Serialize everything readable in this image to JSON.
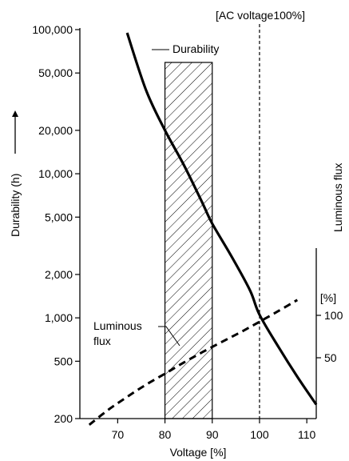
{
  "chart_data": {
    "type": "line",
    "title": "",
    "xlabel": "Voltage [%]",
    "ylabel": "Durability (h)",
    "y2label": "Luminous flux",
    "y2unit": "[%]",
    "x_ticks": [
      "70",
      "80",
      "90",
      "100",
      "110"
    ],
    "y_ticks": [
      "100,000",
      "50,000",
      "20,000",
      "10,000",
      "5,000",
      "2,000",
      "1,000",
      "500",
      "200"
    ],
    "y2_ticks": [
      "100",
      "50"
    ],
    "y_scale": "log",
    "xlim": [
      62,
      112
    ],
    "ylim": [
      200,
      120000
    ],
    "series": [
      {
        "name": "Durability",
        "style": "solid",
        "x": [
          72,
          76,
          80,
          84,
          88,
          90,
          94,
          98,
          100,
          104,
          108,
          112
        ],
        "y": [
          95000,
          38000,
          20000,
          11500,
          6200,
          4500,
          2700,
          1550,
          1050,
          630,
          390,
          250
        ]
      },
      {
        "name": "Luminous\nflux",
        "style": "dashed",
        "x": [
          64,
          68,
          72,
          76,
          80,
          84,
          88,
          92,
          96,
          100,
          104,
          108
        ],
        "y": [
          181,
          230,
          283,
          344,
          410,
          490,
          580,
          680,
          795,
          940,
          1115,
          1330
        ]
      }
    ],
    "shaded_range": [
      80,
      90
    ],
    "reference_line": {
      "x": 100,
      "label": "[AC voltage100%]"
    },
    "annotations": [
      "Durability",
      "Luminous",
      "flux"
    ]
  }
}
